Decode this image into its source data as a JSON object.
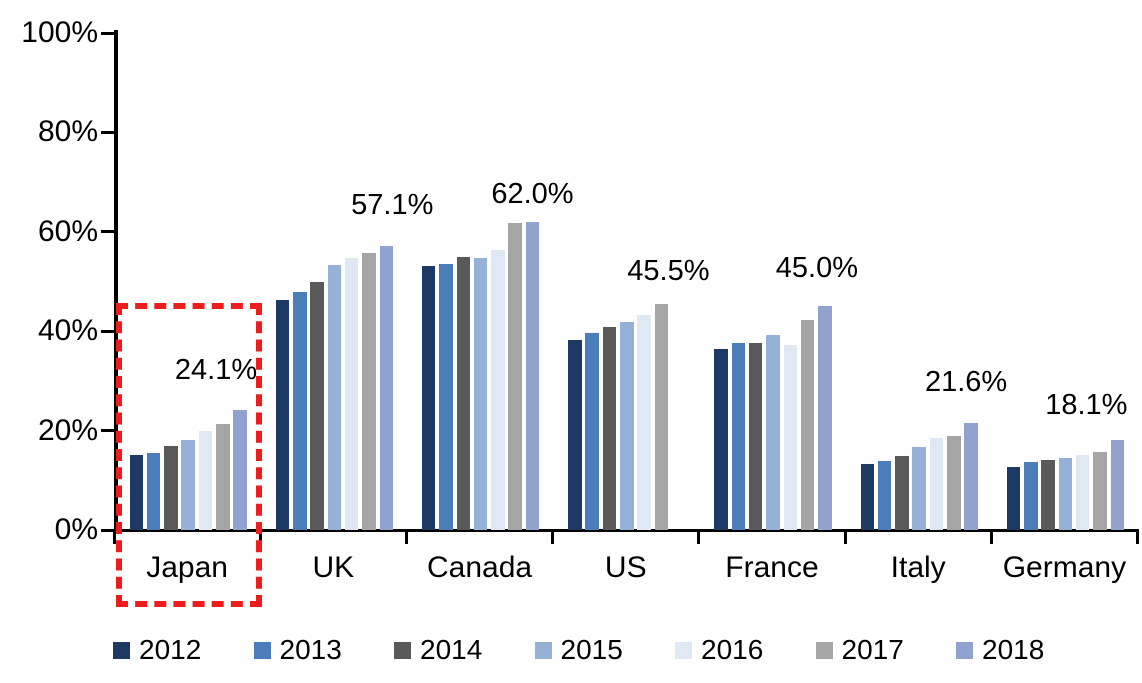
{
  "chart_data": {
    "type": "bar",
    "title": "",
    "subtitle": "",
    "categories": [
      "Japan",
      "UK",
      "Canada",
      "US",
      "France",
      "Italy",
      "Germany"
    ],
    "series": [
      {
        "name": "2012",
        "color": "#1C3A63",
        "values": [
          15.1,
          46.2,
          53.1,
          38.2,
          36.5,
          13.3,
          12.6
        ]
      },
      {
        "name": "2013",
        "color": "#4C7DBB",
        "values": [
          15.4,
          47.8,
          53.5,
          39.7,
          37.6,
          13.9,
          13.6
        ]
      },
      {
        "name": "2014",
        "color": "#595959",
        "values": [
          16.9,
          50.0,
          54.9,
          40.8,
          37.6,
          14.9,
          14.0
        ]
      },
      {
        "name": "2015",
        "color": "#96B1D8",
        "values": [
          18.2,
          53.3,
          54.7,
          41.8,
          39.3,
          16.6,
          14.4
        ]
      },
      {
        "name": "2016",
        "color": "#DFE8F3",
        "values": [
          20.0,
          54.7,
          56.3,
          43.3,
          37.3,
          18.6,
          15.0
        ]
      },
      {
        "name": "2017",
        "color": "#A5A5A5",
        "values": [
          21.3,
          55.7,
          61.7,
          45.5,
          42.3,
          18.9,
          15.6
        ]
      },
      {
        "name": "2018",
        "color": "#90A2CD",
        "values": [
          24.1,
          57.1,
          62.0,
          null,
          45.0,
          21.6,
          18.1
        ]
      }
    ],
    "data_labels": [
      "24.1%",
      "57.1%",
      "62.0%",
      "45.5%",
      "45.0%",
      "21.6%",
      "18.1%"
    ],
    "y_ticks": [
      "0%",
      "20%",
      "40%",
      "60%",
      "80%",
      "100%"
    ],
    "ylim": [
      0,
      100
    ],
    "xlabel": "",
    "ylabel": "",
    "grid": false,
    "legend_position": "bottom",
    "highlight": {
      "type": "dashed-rectangle",
      "around": "Japan",
      "color": "#EE1C1C"
    }
  }
}
